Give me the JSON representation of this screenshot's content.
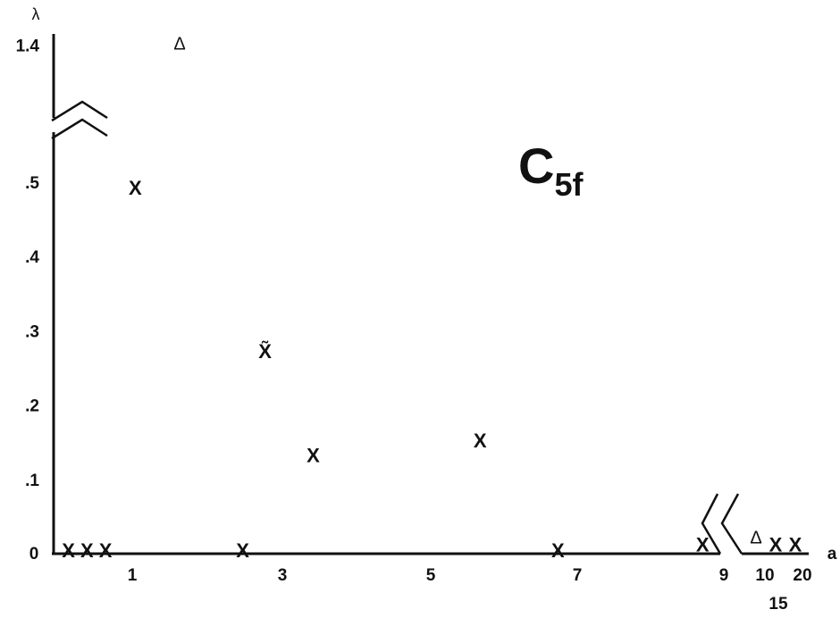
{
  "chart_data": {
    "type": "scatter",
    "title": "C",
    "title_subscript": "5f",
    "xlabel": "a",
    "ylabel": "λ",
    "x_ticks": [
      "0",
      "1",
      "3",
      "5",
      "7",
      "9",
      "10",
      "20",
      "15"
    ],
    "y_ticks": [
      ".1",
      ".2",
      ".3",
      ".4",
      ".5",
      "1.4"
    ],
    "axis_breaks": [
      "y between .5 and 1.4",
      "x between 9 and 10"
    ],
    "grid": false,
    "legend": "none",
    "points": [
      {
        "x": 0.2,
        "y": 0,
        "marker": "X"
      },
      {
        "x": 0.45,
        "y": 0,
        "marker": "X"
      },
      {
        "x": 0.7,
        "y": 0,
        "marker": "X"
      },
      {
        "x": 1.1,
        "y": 0.49,
        "marker": "X"
      },
      {
        "x": 1.7,
        "y": 1.4,
        "marker": "Δ"
      },
      {
        "x": 2.55,
        "y": 0,
        "marker": "X"
      },
      {
        "x": 2.85,
        "y": 0.27,
        "marker": "X̃"
      },
      {
        "x": 3.5,
        "y": 0.13,
        "marker": "X"
      },
      {
        "x": 5.75,
        "y": 0.15,
        "marker": "X"
      },
      {
        "x": 6.8,
        "y": 0,
        "marker": "X"
      },
      {
        "x": 8.75,
        "y": 0.01,
        "marker": "X"
      },
      {
        "x": 10,
        "y": 0.02,
        "marker": "Δ"
      },
      {
        "x": 15,
        "y": 0.01,
        "marker": "X"
      },
      {
        "x": 20,
        "y": 0.01,
        "marker": "X"
      }
    ]
  }
}
